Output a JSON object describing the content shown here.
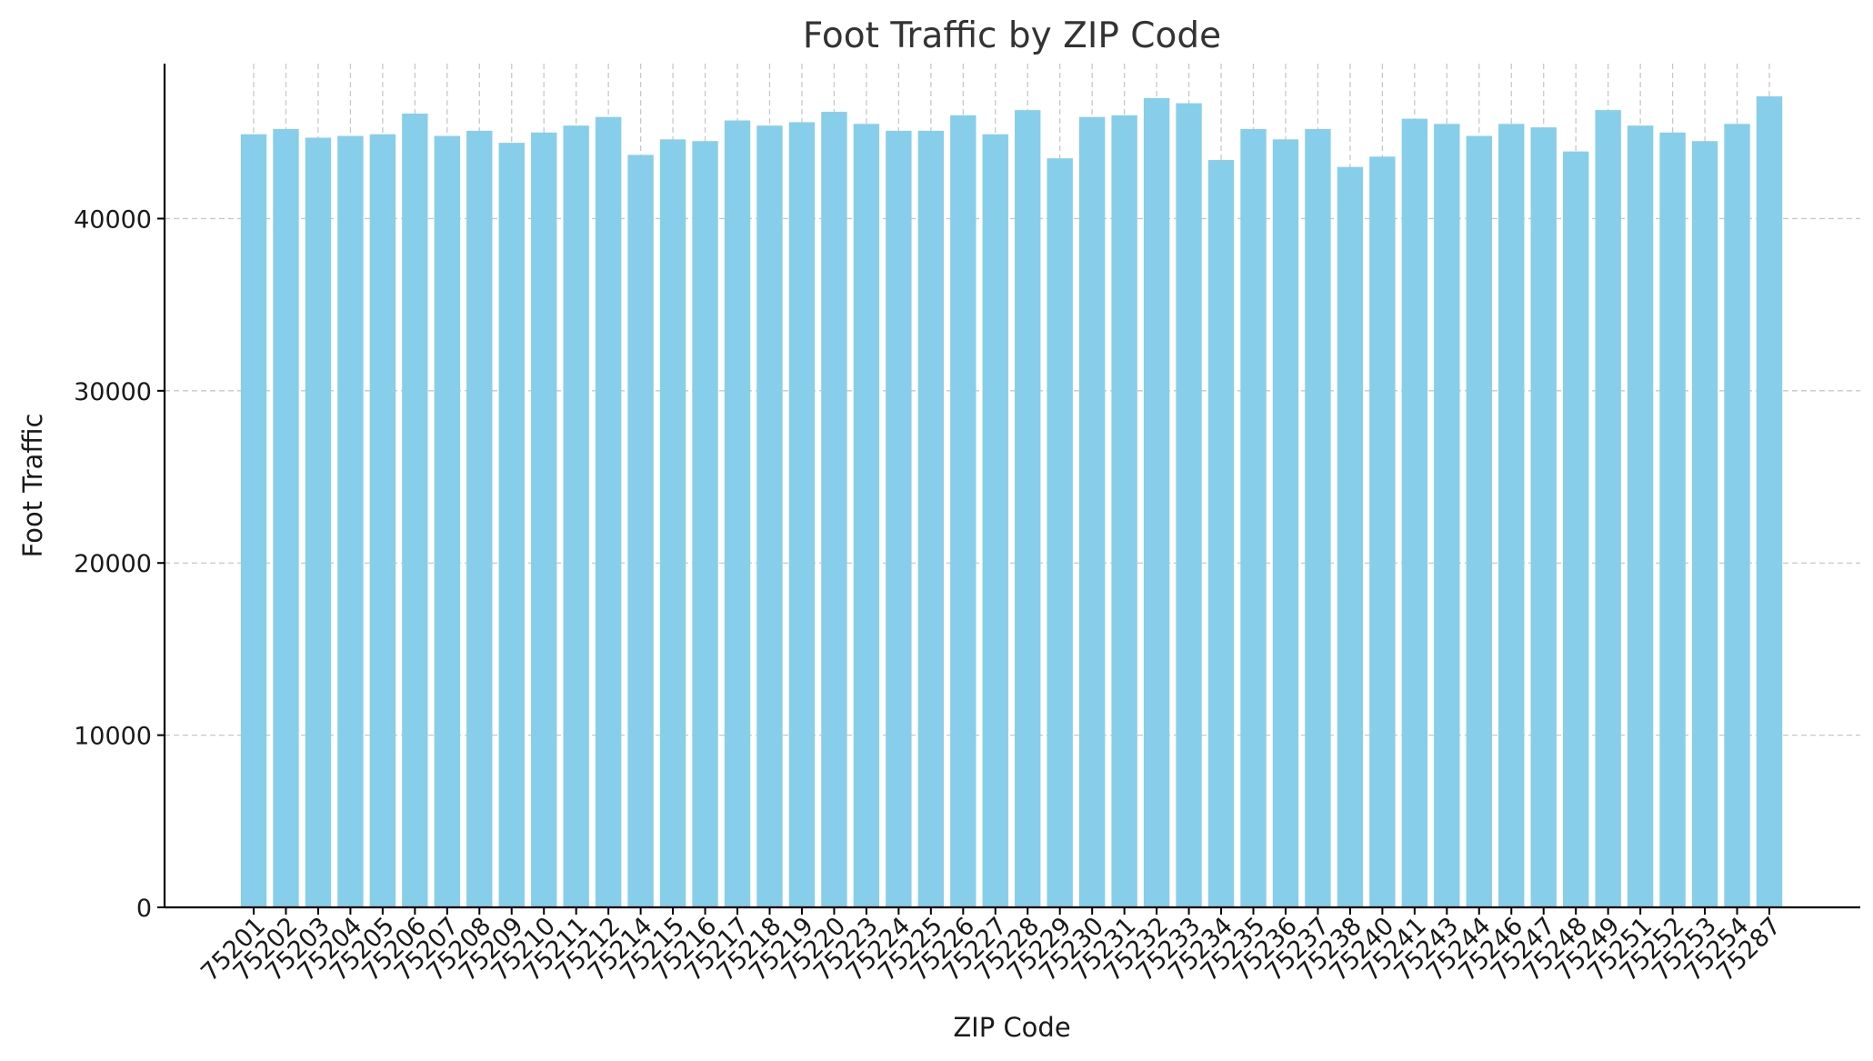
{
  "colors": {
    "bar": "#87ceeb",
    "grid": "#c8c8c8",
    "text": "#333333"
  },
  "chart_data": {
    "type": "bar",
    "title": "Foot Traffic by ZIP Code",
    "xlabel": "ZIP Code",
    "ylabel": "Foot Traffic",
    "ylim": [
      0,
      49000
    ],
    "yticks": [
      0,
      10000,
      20000,
      30000,
      40000
    ],
    "grid": true,
    "categories": [
      "75201",
      "75202",
      "75203",
      "75204",
      "75205",
      "75206",
      "75207",
      "75208",
      "75209",
      "75210",
      "75211",
      "75212",
      "75214",
      "75215",
      "75216",
      "75217",
      "75218",
      "75219",
      "75220",
      "75223",
      "75224",
      "75225",
      "75226",
      "75227",
      "75228",
      "75229",
      "75230",
      "75231",
      "75232",
      "75233",
      "75234",
      "75235",
      "75236",
      "75237",
      "75238",
      "75240",
      "75241",
      "75243",
      "75244",
      "75246",
      "75247",
      "75248",
      "75249",
      "75251",
      "75252",
      "75253",
      "75254",
      "75287"
    ],
    "values": [
      44900,
      45200,
      44700,
      44800,
      44900,
      46100,
      44800,
      45100,
      44400,
      45000,
      45400,
      45900,
      43700,
      44600,
      44500,
      45700,
      45400,
      45600,
      46200,
      45500,
      45100,
      45100,
      46000,
      44900,
      46300,
      43500,
      45900,
      46000,
      47000,
      46700,
      43400,
      45200,
      44600,
      45200,
      43000,
      43600,
      45800,
      45500,
      44800,
      45500,
      45300,
      43900,
      46300,
      45400,
      45000,
      44500,
      45500,
      47100
    ]
  }
}
